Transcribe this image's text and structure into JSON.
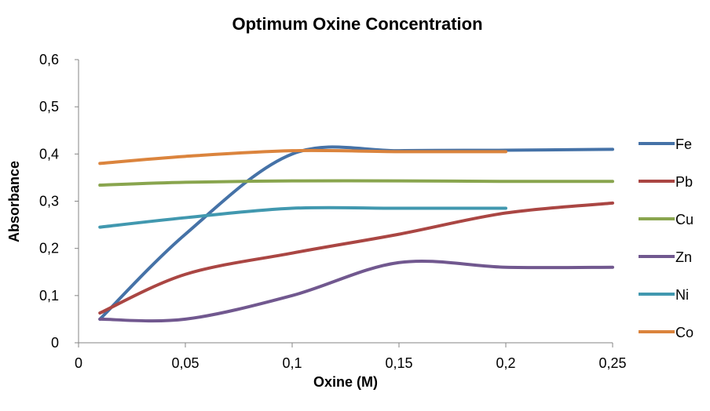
{
  "chart_data": {
    "type": "line",
    "title": "Optimum Oxine Concentration",
    "xlabel": "Oxine (M)",
    "ylabel": "Absorbance",
    "xlim": [
      0,
      0.25
    ],
    "ylim": [
      0,
      0.6
    ],
    "x_ticks": [
      "0",
      "0,05",
      "0,1",
      "0,15",
      "0,2",
      "0,25"
    ],
    "y_ticks": [
      "0",
      "0,1",
      "0,2",
      "0,3",
      "0,4",
      "0,5",
      "0,6"
    ],
    "grid": false,
    "smooth": true,
    "legend_position": "right",
    "series": [
      {
        "name": "Fe",
        "color": "#4572A7",
        "x": [
          0.01,
          0.05,
          0.1,
          0.15,
          0.2,
          0.25
        ],
        "y": [
          0.05,
          0.23,
          0.4,
          0.407,
          0.408,
          0.41
        ]
      },
      {
        "name": "Pb",
        "color": "#AA4643",
        "x": [
          0.01,
          0.05,
          0.1,
          0.15,
          0.2,
          0.25
        ],
        "y": [
          0.063,
          0.145,
          0.19,
          0.23,
          0.275,
          0.296
        ]
      },
      {
        "name": "Cu",
        "color": "#89A54E",
        "x": [
          0.01,
          0.05,
          0.1,
          0.15,
          0.2,
          0.25
        ],
        "y": [
          0.334,
          0.34,
          0.343,
          0.343,
          0.342,
          0.342
        ]
      },
      {
        "name": "Zn",
        "color": "#71588F",
        "x": [
          0.01,
          0.05,
          0.1,
          0.15,
          0.2,
          0.25
        ],
        "y": [
          0.05,
          0.05,
          0.1,
          0.17,
          0.16,
          0.16
        ]
      },
      {
        "name": "Ni",
        "color": "#4198AF",
        "x": [
          0.01,
          0.05,
          0.1,
          0.15,
          0.2
        ],
        "y": [
          0.245,
          0.265,
          0.285,
          0.285,
          0.285
        ]
      },
      {
        "name": "Co",
        "color": "#DB843D",
        "x": [
          0.01,
          0.05,
          0.1,
          0.15,
          0.2
        ],
        "y": [
          0.38,
          0.395,
          0.407,
          0.405,
          0.405
        ]
      }
    ]
  }
}
